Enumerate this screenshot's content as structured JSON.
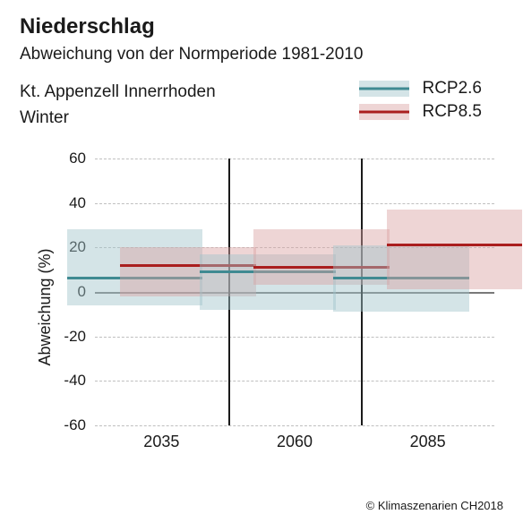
{
  "title": "Niederschlag",
  "subtitle": "Abweichung von der Normperiode 1981-2010",
  "region_label": "Kt. Appenzell Innerrhoden",
  "season_label": "Winter",
  "credit": "© Klimaszenarien CH2018",
  "legend": {
    "rcp26": {
      "label": "RCP2.6",
      "band_color": "#9fc4c9",
      "line_color": "#3f8a92"
    },
    "rcp85": {
      "label": "RCP8.5",
      "band_color": "#d9a1a1",
      "line_color": "#aa1e1e"
    }
  },
  "chart": {
    "type": "boxplot",
    "ylabel": "Abweichung (%)",
    "ylim": [
      -60,
      60
    ],
    "ytick_step": 20,
    "yticks": [
      -60,
      -40,
      -20,
      0,
      20,
      40,
      60
    ],
    "background_color": "#ffffff",
    "grid_color": "#bfbfbf",
    "zero_line_color": "#7a7a7a",
    "separator_color": "#1a1a1a",
    "tick_fontsize": 17,
    "label_fontsize": 18,
    "bar_width_pct": 34,
    "groups": [
      {
        "x_label": "2035",
        "rcp26": {
          "low": -6,
          "median": 6,
          "high": 28
        },
        "rcp85": {
          "low": -2,
          "median": 12,
          "high": 20
        }
      },
      {
        "x_label": "2060",
        "rcp26": {
          "low": -8,
          "median": 9,
          "high": 17
        },
        "rcp85": {
          "low": 3,
          "median": 11,
          "high": 28
        }
      },
      {
        "x_label": "2085",
        "rcp26": {
          "low": -9,
          "median": 6,
          "high": 21
        },
        "rcp85": {
          "low": 1,
          "median": 21,
          "high": 37
        }
      }
    ]
  }
}
